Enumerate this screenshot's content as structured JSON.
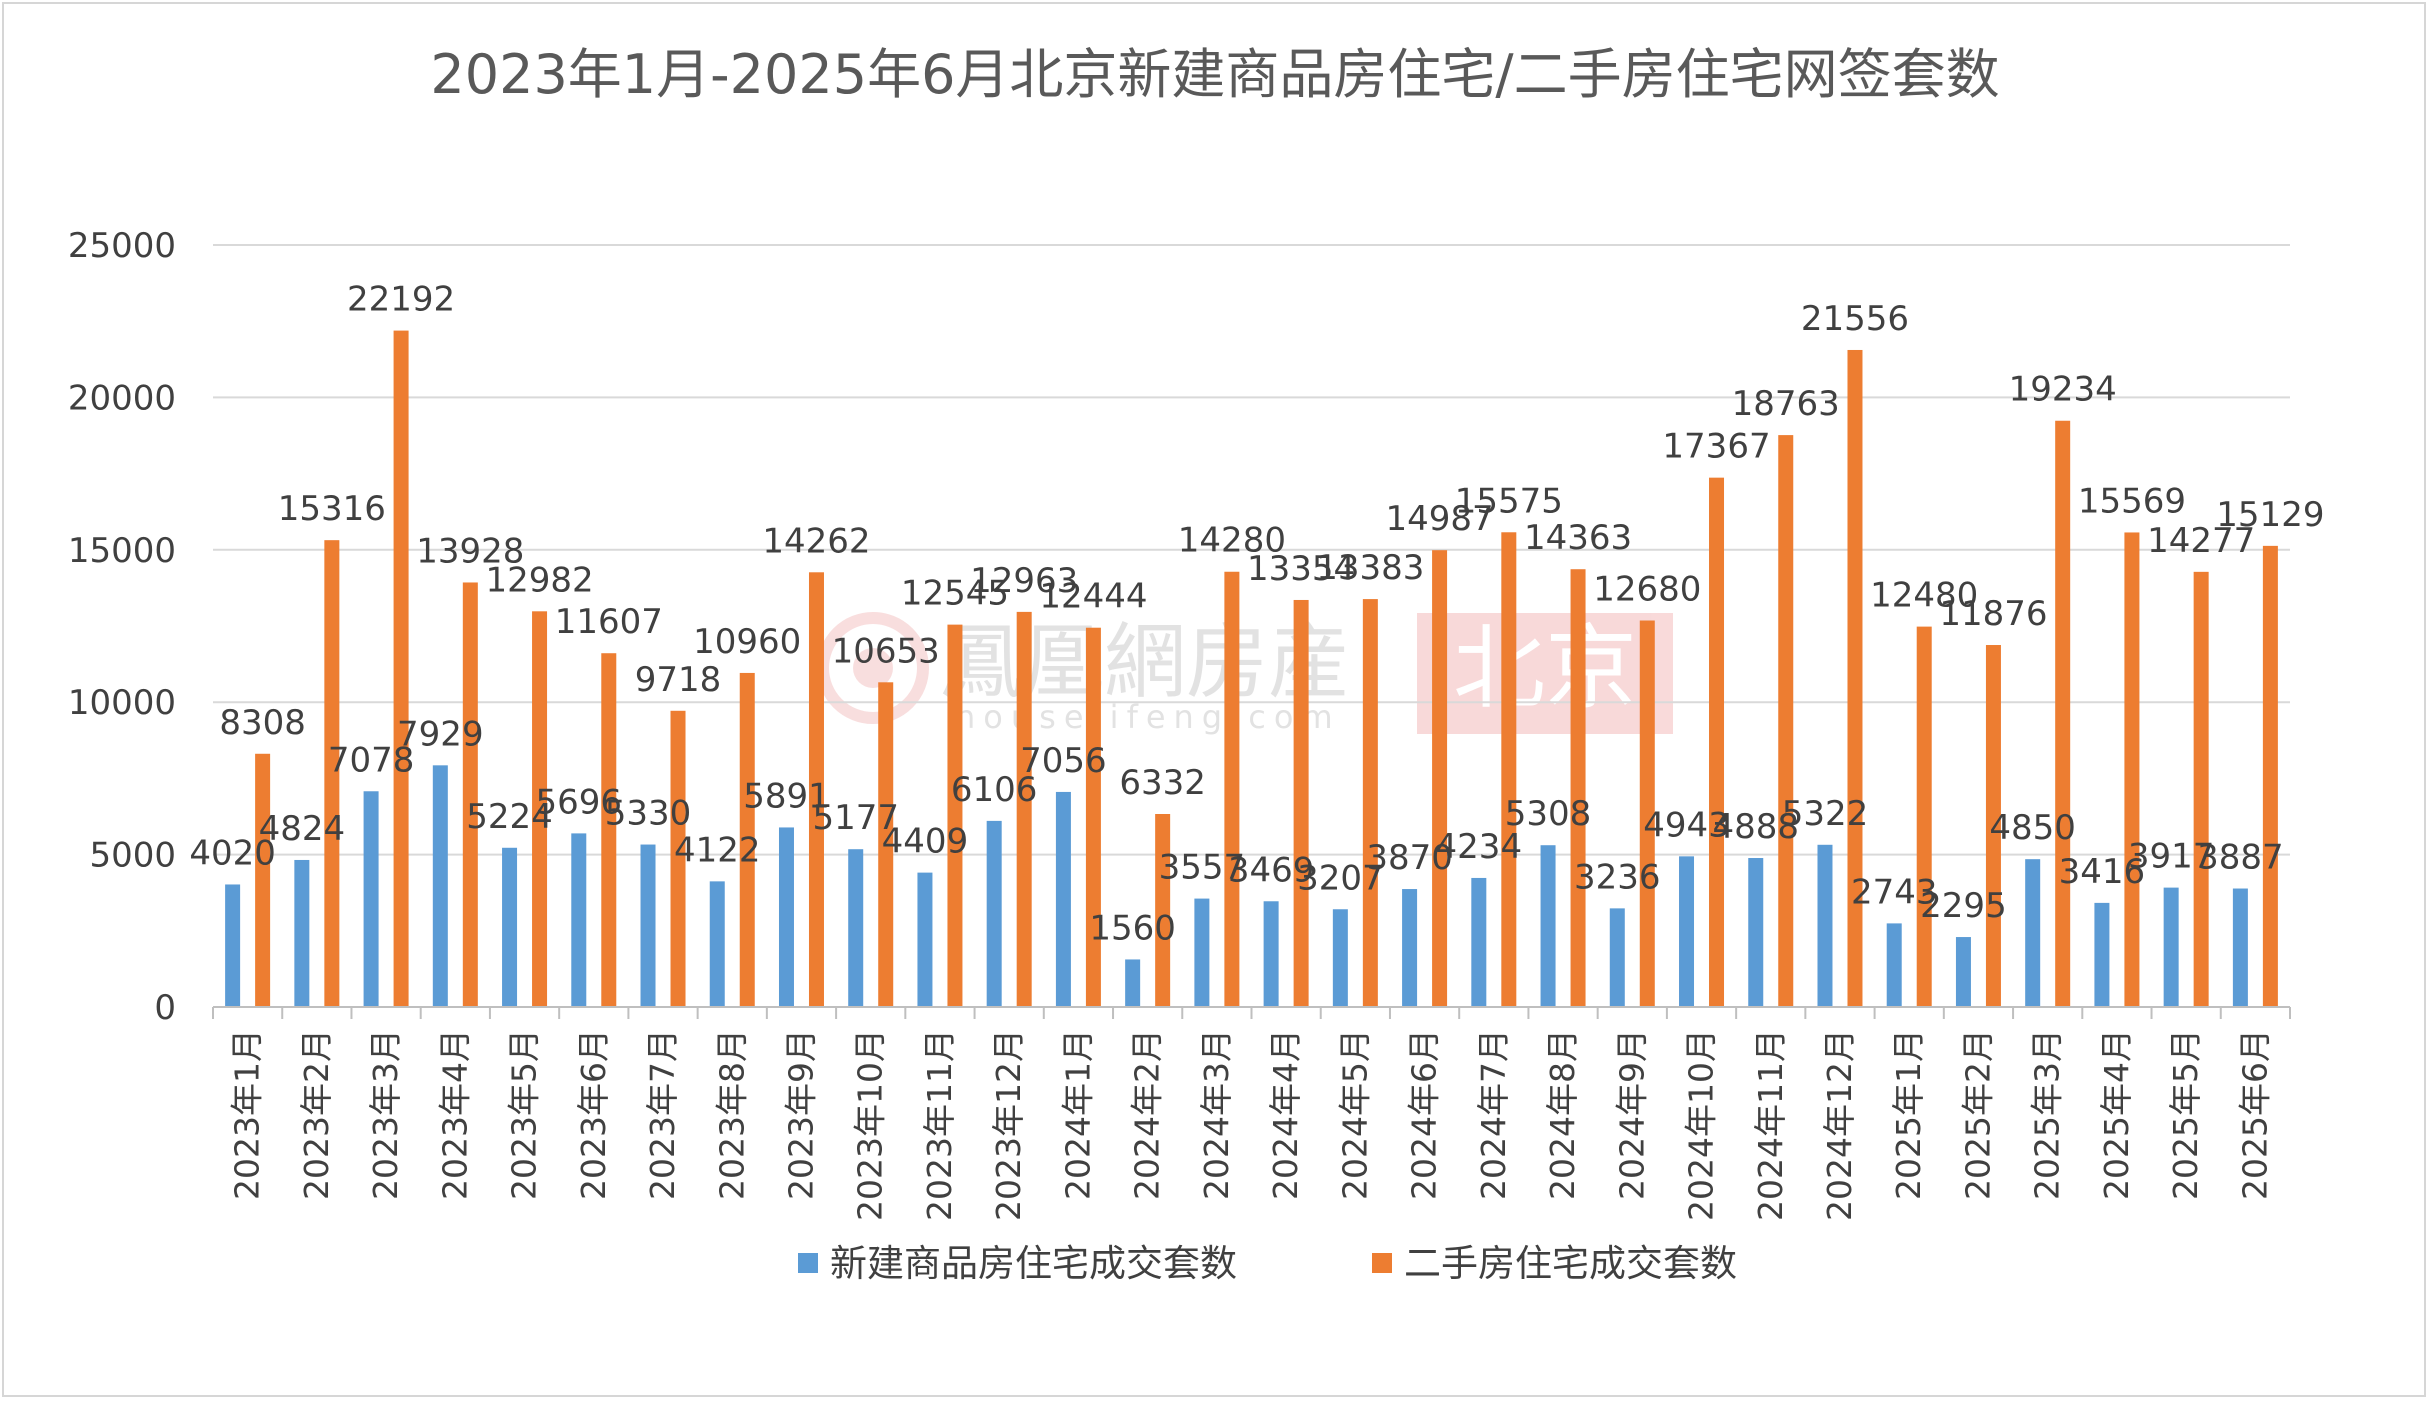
{
  "watermark": {
    "logo_text": "鳳凰網房産",
    "url_text": "house.ifeng.com",
    "city_text": "北京"
  },
  "colors": {
    "new": "#5b9bd5",
    "second": "#ed7d31",
    "grid": "#d9d9d9",
    "axis": "#bfbfbf",
    "text": "#404040",
    "title": "#595959"
  },
  "chart_data": {
    "type": "bar",
    "title": "2023年1月-2025年6月北京新建商品房住宅/二手房住宅网签套数",
    "xlabel": "",
    "ylabel": "",
    "ylim": [
      0,
      25000
    ],
    "yticks": [
      0,
      5000,
      10000,
      15000,
      20000,
      25000
    ],
    "grid": true,
    "legend_position": "bottom",
    "categories": [
      "2023年1月",
      "2023年2月",
      "2023年3月",
      "2023年4月",
      "2023年5月",
      "2023年6月",
      "2023年7月",
      "2023年8月",
      "2023年9月",
      "2023年10月",
      "2023年11月",
      "2023年12月",
      "2024年1月",
      "2024年2月",
      "2024年3月",
      "2024年4月",
      "2024年5月",
      "2024年6月",
      "2024年7月",
      "2024年8月",
      "2024年9月",
      "2024年10月",
      "2024年11月",
      "2024年12月",
      "2025年1月",
      "2025年2月",
      "2025年3月",
      "2025年4月",
      "2025年5月",
      "2025年6月"
    ],
    "series": [
      {
        "name": "新建商品房住宅成交套数",
        "color": "#5b9bd5",
        "values": [
          4020,
          4824,
          7078,
          7929,
          5224,
          5696,
          5330,
          4122,
          5891,
          5177,
          4409,
          6106,
          7056,
          1560,
          3557,
          3469,
          3207,
          3870,
          4234,
          5308,
          3236,
          4943,
          4888,
          5322,
          2743,
          2295,
          4850,
          3416,
          3917,
          3887
        ]
      },
      {
        "name": "二手房住宅成交套数",
        "color": "#ed7d31",
        "values": [
          8308,
          15316,
          22192,
          13928,
          12982,
          11607,
          9718,
          10960,
          14262,
          10653,
          12545,
          12963,
          12444,
          6332,
          14280,
          13354,
          13383,
          14987,
          15575,
          14363,
          12680,
          17367,
          18763,
          21556,
          12480,
          11876,
          19234,
          15569,
          14277,
          15129
        ]
      }
    ]
  }
}
